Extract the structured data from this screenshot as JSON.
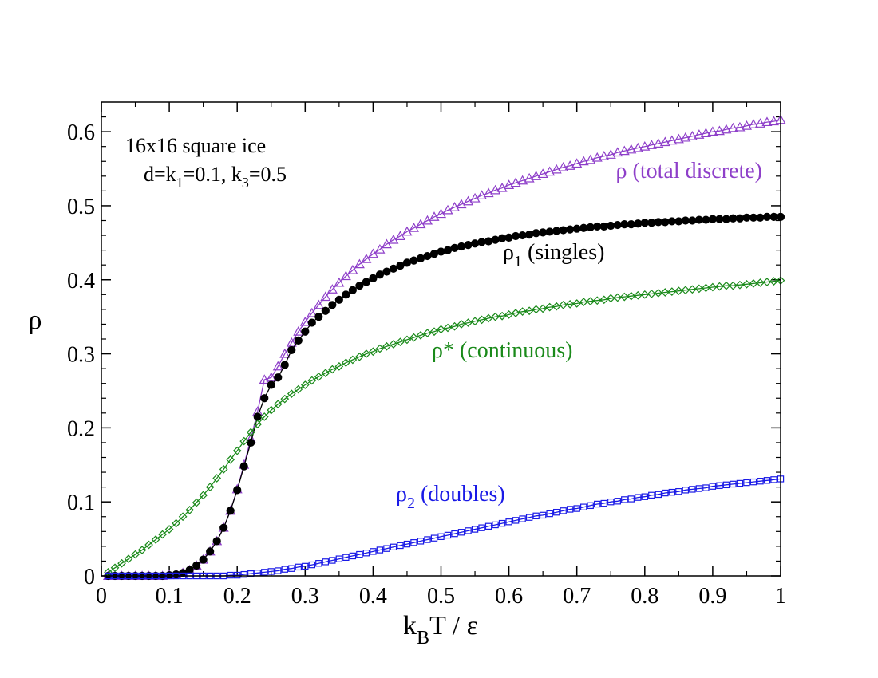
{
  "chart_data": {
    "type": "scatter",
    "title": "",
    "xlabel": "k_B T / ε",
    "xlabel_parts": {
      "k": "k",
      "sub": "B",
      "rest": "T / ε"
    },
    "ylabel": "ρ",
    "xlim": [
      0,
      1
    ],
    "ylim": [
      0,
      0.64
    ],
    "x_ticks": [
      0,
      0.1,
      0.2,
      0.3,
      0.4,
      0.5,
      0.6,
      0.7,
      0.8,
      0.9,
      1
    ],
    "x_tick_labels": [
      "0",
      "0.1",
      "0.2",
      "0.3",
      "0.4",
      "0.5",
      "0.6",
      "0.7",
      "0.8",
      "0.9",
      "1"
    ],
    "y_ticks": [
      0,
      0.1,
      0.2,
      0.3,
      0.4,
      0.5,
      0.6
    ],
    "y_tick_labels": [
      "0",
      "0.1",
      "0.2",
      "0.3",
      "0.4",
      "0.5",
      "0.6"
    ],
    "annotation": {
      "line1": "16x16 square ice",
      "line2_parts": {
        "a": "d=k",
        "sub1": "1",
        "b": "=0.1, k",
        "sub2": "3",
        "c": "=0.5"
      }
    },
    "x": [
      0.01,
      0.02,
      0.03,
      0.04,
      0.05,
      0.06,
      0.07,
      0.08,
      0.09,
      0.1,
      0.11,
      0.12,
      0.13,
      0.14,
      0.15,
      0.16,
      0.17,
      0.18,
      0.19,
      0.2,
      0.21,
      0.22,
      0.23,
      0.24,
      0.25,
      0.26,
      0.27,
      0.28,
      0.29,
      0.3,
      0.31,
      0.32,
      0.33,
      0.34,
      0.35,
      0.36,
      0.37,
      0.38,
      0.39,
      0.4,
      0.41,
      0.42,
      0.43,
      0.44,
      0.45,
      0.46,
      0.47,
      0.48,
      0.49,
      0.5,
      0.51,
      0.52,
      0.53,
      0.54,
      0.55,
      0.56,
      0.57,
      0.58,
      0.59,
      0.6,
      0.61,
      0.62,
      0.63,
      0.64,
      0.65,
      0.66,
      0.67,
      0.68,
      0.69,
      0.7,
      0.71,
      0.72,
      0.73,
      0.74,
      0.75,
      0.76,
      0.77,
      0.78,
      0.79,
      0.8,
      0.81,
      0.82,
      0.83,
      0.84,
      0.85,
      0.86,
      0.87,
      0.88,
      0.89,
      0.9,
      0.91,
      0.92,
      0.93,
      0.94,
      0.95,
      0.96,
      0.97,
      0.98,
      0.99,
      1.0
    ],
    "series": [
      {
        "name": "ρ (total discrete)",
        "label_main": "ρ (total discrete)",
        "color": "#8e3fc9",
        "marker": "triangle",
        "values": [
          0.0,
          0.0,
          0.0,
          0.0,
          0.0,
          0.0,
          0.0,
          0.0,
          0.0,
          0.001,
          0.002,
          0.004,
          0.008,
          0.014,
          0.022,
          0.033,
          0.047,
          0.065,
          0.088,
          0.117,
          0.15,
          0.185,
          0.222,
          0.265,
          0.268,
          0.283,
          0.3,
          0.315,
          0.33,
          0.343,
          0.355,
          0.366,
          0.377,
          0.387,
          0.396,
          0.405,
          0.413,
          0.421,
          0.428,
          0.435,
          0.441,
          0.448,
          0.454,
          0.459,
          0.465,
          0.47,
          0.475,
          0.48,
          0.485,
          0.489,
          0.494,
          0.498,
          0.502,
          0.506,
          0.51,
          0.514,
          0.517,
          0.521,
          0.524,
          0.528,
          0.531,
          0.534,
          0.537,
          0.54,
          0.543,
          0.546,
          0.549,
          0.552,
          0.554,
          0.557,
          0.56,
          0.562,
          0.565,
          0.567,
          0.569,
          0.572,
          0.574,
          0.576,
          0.578,
          0.58,
          0.582,
          0.584,
          0.586,
          0.588,
          0.59,
          0.592,
          0.594,
          0.596,
          0.598,
          0.6,
          0.601,
          0.603,
          0.605,
          0.606,
          0.608,
          0.61,
          0.611,
          0.613,
          0.614,
          0.616
        ]
      },
      {
        "name": "ρ1 (singles)",
        "label_main": "ρ",
        "label_sub": "1",
        "label_rest": " (singles)",
        "color": "#000000",
        "marker": "circle",
        "values": [
          0.0,
          0.0,
          0.0,
          0.0,
          0.0,
          0.0,
          0.0,
          0.0,
          0.0,
          0.001,
          0.002,
          0.004,
          0.008,
          0.014,
          0.022,
          0.033,
          0.047,
          0.065,
          0.088,
          0.116,
          0.148,
          0.18,
          0.215,
          0.24,
          0.258,
          0.268,
          0.285,
          0.305,
          0.318,
          0.33,
          0.342,
          0.35,
          0.358,
          0.366,
          0.373,
          0.38,
          0.386,
          0.392,
          0.397,
          0.402,
          0.407,
          0.411,
          0.415,
          0.419,
          0.423,
          0.426,
          0.429,
          0.432,
          0.435,
          0.438,
          0.44,
          0.443,
          0.445,
          0.447,
          0.449,
          0.451,
          0.452,
          0.454,
          0.456,
          0.457,
          0.459,
          0.46,
          0.461,
          0.463,
          0.464,
          0.465,
          0.466,
          0.467,
          0.468,
          0.469,
          0.47,
          0.471,
          0.472,
          0.472,
          0.473,
          0.474,
          0.475,
          0.475,
          0.476,
          0.477,
          0.477,
          0.478,
          0.478,
          0.479,
          0.479,
          0.48,
          0.48,
          0.481,
          0.481,
          0.482,
          0.482,
          0.482,
          0.483,
          0.483,
          0.484,
          0.484,
          0.484,
          0.485,
          0.485,
          0.485
        ]
      },
      {
        "name": "ρ* (continuous)",
        "label_main": "ρ* (continuous)",
        "color": "#1a8a1a",
        "marker": "diamond",
        "values": [
          0.005,
          0.011,
          0.017,
          0.023,
          0.029,
          0.035,
          0.042,
          0.049,
          0.056,
          0.063,
          0.071,
          0.08,
          0.089,
          0.099,
          0.109,
          0.12,
          0.132,
          0.144,
          0.157,
          0.169,
          0.182,
          0.194,
          0.205,
          0.215,
          0.224,
          0.232,
          0.239,
          0.246,
          0.252,
          0.258,
          0.264,
          0.269,
          0.274,
          0.279,
          0.283,
          0.288,
          0.292,
          0.296,
          0.3,
          0.303,
          0.307,
          0.31,
          0.313,
          0.316,
          0.319,
          0.322,
          0.325,
          0.328,
          0.33,
          0.333,
          0.335,
          0.337,
          0.34,
          0.342,
          0.344,
          0.346,
          0.348,
          0.35,
          0.351,
          0.353,
          0.355,
          0.357,
          0.358,
          0.36,
          0.361,
          0.363,
          0.364,
          0.366,
          0.367,
          0.368,
          0.37,
          0.371,
          0.372,
          0.373,
          0.375,
          0.376,
          0.377,
          0.378,
          0.379,
          0.38,
          0.381,
          0.382,
          0.383,
          0.384,
          0.385,
          0.386,
          0.387,
          0.388,
          0.389,
          0.39,
          0.391,
          0.392,
          0.392,
          0.393,
          0.394,
          0.395,
          0.396,
          0.397,
          0.398,
          0.399
        ]
      },
      {
        "name": "ρ2 (doubles)",
        "label_main": "ρ",
        "label_sub": "2",
        "label_rest": " (doubles)",
        "color": "#1a1ae6",
        "marker": "square",
        "values": [
          0.0,
          0.0,
          0.0,
          0.0,
          0.0,
          0.0,
          0.0,
          0.0,
          0.0,
          0.0,
          0.0,
          0.0,
          0.0,
          0.0,
          0.0,
          0.0,
          0.0,
          0.0,
          0.001,
          0.001,
          0.002,
          0.003,
          0.004,
          0.005,
          0.006,
          0.007,
          0.009,
          0.01,
          0.012,
          0.013,
          0.015,
          0.017,
          0.019,
          0.021,
          0.023,
          0.025,
          0.027,
          0.029,
          0.031,
          0.033,
          0.035,
          0.037,
          0.039,
          0.041,
          0.043,
          0.045,
          0.047,
          0.049,
          0.051,
          0.053,
          0.055,
          0.057,
          0.059,
          0.061,
          0.063,
          0.065,
          0.067,
          0.069,
          0.071,
          0.073,
          0.075,
          0.077,
          0.079,
          0.081,
          0.082,
          0.084,
          0.086,
          0.088,
          0.09,
          0.091,
          0.093,
          0.095,
          0.097,
          0.098,
          0.1,
          0.101,
          0.103,
          0.104,
          0.106,
          0.107,
          0.109,
          0.11,
          0.112,
          0.113,
          0.114,
          0.116,
          0.117,
          0.118,
          0.119,
          0.121,
          0.122,
          0.123,
          0.124,
          0.125,
          0.126,
          0.127,
          0.128,
          0.129,
          0.13,
          0.131
        ]
      }
    ]
  }
}
